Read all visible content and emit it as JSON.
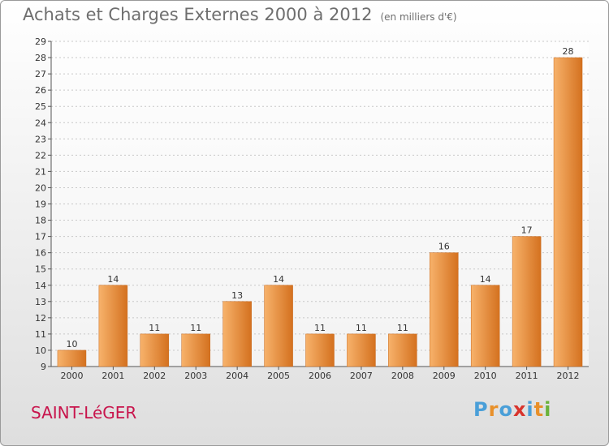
{
  "title": "Achats et Charges Externes 2000 à 2012",
  "unit": "(en milliers d'€)",
  "commune": "SAINT-LéGER",
  "logo": {
    "letters": [
      "P",
      "r",
      "o",
      "x",
      "i",
      "t",
      "i"
    ],
    "colors": [
      "#4a9fd8",
      "#e8902a",
      "#4a9fd8",
      "#d8342c",
      "#4a9fd8",
      "#e8902a",
      "#6ab23a"
    ]
  },
  "colors": {
    "bar": "#f0923a",
    "bar_light": "#f7b26b",
    "bar_dark": "#d4711f",
    "title": "#6e6e6e",
    "commune": "#c8144c"
  },
  "chart_data": {
    "type": "bar",
    "categories": [
      "2000",
      "2001",
      "2002",
      "2003",
      "2004",
      "2005",
      "2006",
      "2007",
      "2008",
      "2009",
      "2010",
      "2011",
      "2012"
    ],
    "values": [
      10,
      14,
      11,
      11,
      13,
      14,
      11,
      11,
      11,
      16,
      14,
      17,
      28
    ],
    "ylim": [
      9,
      29
    ],
    "yticks": [
      9,
      10,
      11,
      12,
      13,
      14,
      15,
      16,
      17,
      18,
      19,
      20,
      21,
      22,
      23,
      24,
      25,
      26,
      27,
      28,
      29
    ],
    "grid": true
  }
}
